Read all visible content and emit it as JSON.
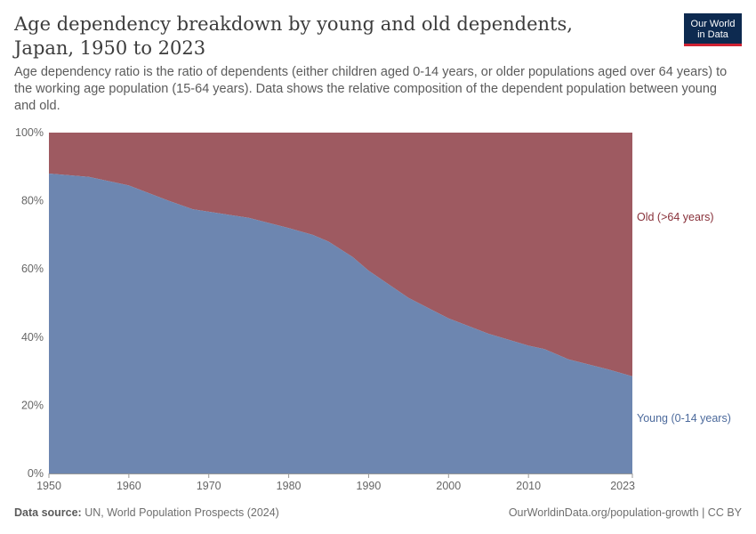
{
  "header": {
    "title": "Age dependency breakdown by young and old dependents, Japan, 1950 to 2023",
    "subtitle": "Age dependency ratio is the ratio of dependents (either children aged 0-14 years, or older populations aged over 64 years) to the working age population (15-64 years). Data shows the relative composition of the dependent population between young and old."
  },
  "logo": {
    "line1": "Our World",
    "line2": "in Data"
  },
  "footer": {
    "source_label": "Data source:",
    "source_text": "UN, World Population Prospects (2024)",
    "credit": "OurWorldinData.org/population-growth | CC BY"
  },
  "colors": {
    "young": "#6d86b0",
    "old": "#9e5a61",
    "young_label": "#4c6a9c",
    "old_label": "#883039"
  },
  "chart_data": {
    "type": "area",
    "stacked": true,
    "percent": true,
    "x": [
      1950,
      1955,
      1960,
      1965,
      1968,
      1970,
      1975,
      1980,
      1983,
      1985,
      1988,
      1990,
      1995,
      2000,
      2005,
      2010,
      2012,
      2015,
      2020,
      2023
    ],
    "series": [
      {
        "name": "Young (0-14 years)",
        "values": [
          88,
          87,
          84.5,
          80,
          77.5,
          76.8,
          75,
          72,
          70,
          68,
          63.5,
          59.5,
          51.5,
          45.5,
          41,
          37.5,
          36.5,
          33.5,
          30.5,
          28.5
        ]
      },
      {
        "name": "Old (>64 years)",
        "values": [
          12,
          13,
          15.5,
          20,
          22.5,
          23.2,
          25,
          28,
          30,
          32,
          36.5,
          40.5,
          48.5,
          54.5,
          59,
          62.5,
          63.5,
          66.5,
          69.5,
          71.5
        ]
      }
    ],
    "xticks": [
      "1950",
      "1960",
      "1970",
      "1980",
      "1990",
      "2000",
      "2010",
      "2023"
    ],
    "yticks": [
      "0%",
      "20%",
      "40%",
      "60%",
      "80%",
      "100%"
    ],
    "xlim": [
      1950,
      2023
    ],
    "ylim": [
      0,
      100
    ],
    "legend": "right, inline labels"
  }
}
